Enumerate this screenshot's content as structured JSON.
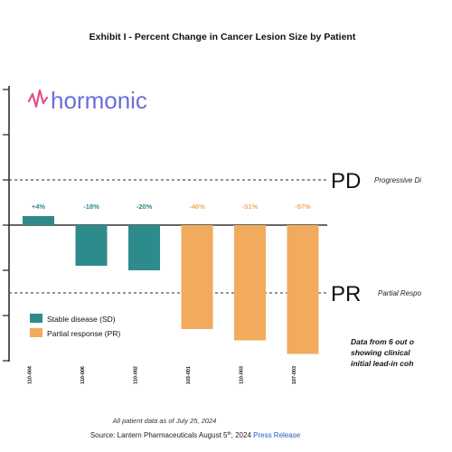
{
  "chart_data": {
    "type": "bar",
    "title": "Exhibit I - Percent Change in Cancer Lesion Size by Patient",
    "categories": [
      "110-004",
      "110-006",
      "110-002",
      "103-001",
      "110-003",
      "107-003"
    ],
    "values": [
      4,
      -18,
      -20,
      -46,
      -51,
      -57
    ],
    "value_labels": [
      "+4%",
      "-18%",
      "-20%",
      "-46%",
      "-51%",
      "-57%"
    ],
    "groups": [
      "SD",
      "SD",
      "SD",
      "PR",
      "PR",
      "PR"
    ],
    "ylim": [
      -60,
      60
    ],
    "legend": {
      "placement": "bottom-left",
      "entries": [
        {
          "key": "SD",
          "label": "Stable disease (SD)",
          "color": "#2e8b8c"
        },
        {
          "key": "PR",
          "label": "Partial response (PR)",
          "color": "#f2ab5e"
        }
      ]
    },
    "reference_lines": [
      {
        "value": 20,
        "label": "PD",
        "description": "Progressive Di"
      },
      {
        "value": -30,
        "label": "PR",
        "description": "Partial Respo"
      }
    ]
  },
  "logo_text": "hormonic",
  "note_lines": [
    "Data from 6 out o",
    "showing clinical",
    "initial lead-in coh"
  ],
  "footnote": "All patient data as of July 25, 2024",
  "source_text": "Source: Lantern Pharmaceuticals August 5",
  "source_sup": "th",
  "source_tail": ", 2024 ",
  "source_link": "Press Release"
}
